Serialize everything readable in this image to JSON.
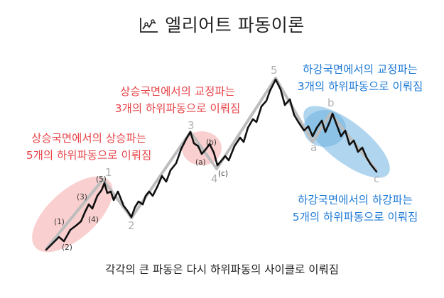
{
  "title": "엘리어트 파동이론",
  "captions": {
    "up_impulse": [
      "상승국면에서의 상승파는",
      "5개의 하위파동으로 이뤄짐"
    ],
    "up_correction": [
      "상승국면에서의 교정파는",
      "3개의 하위파동으로 이뤄짐"
    ],
    "down_correction": [
      "하강국면에서의 교정파는",
      "3개의 하위파동으로 이뤄짐"
    ],
    "down_impulse": [
      "하강국면에서의 하강파는",
      "5개의 하위파동으로 이뤄짐"
    ]
  },
  "footer": "각각의 큰 파동은 다시 하위파동의 사이클로 이뤄짐",
  "wave_labels": {
    "w1": "1",
    "w2": "2",
    "w3": "3",
    "w4": "4",
    "w5": "5",
    "wa": "a",
    "wb": "b",
    "wc": "c"
  },
  "subwave_labels": {
    "s1": "(1)",
    "s2": "(2)",
    "s3": "(3)",
    "s4": "(4)",
    "s5": "(5)",
    "sa": "(a)",
    "sb": "(b)",
    "sc": "(c)"
  },
  "colors": {
    "red_text": "#e8454a",
    "blue_text": "#1e7ad6",
    "red_fill": "#f4a7a7",
    "blue_fill": "#6fb3e0",
    "main_line": "#111111",
    "major_line": "#bdbdbd",
    "major_label": "#b0b0b0"
  }
}
